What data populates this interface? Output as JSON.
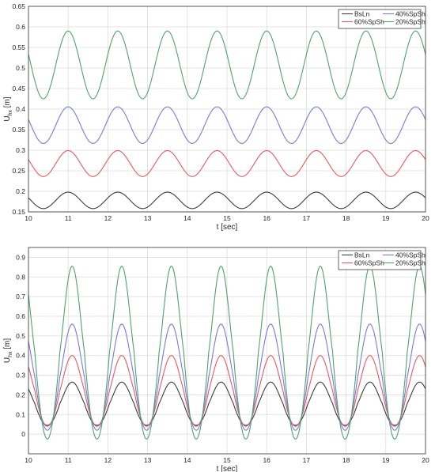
{
  "colors": {
    "BsLn": "#3c3c3c",
    "60%SpSh": "#e8595c",
    "40%SpSh": "#7b78dd",
    "20%SpSh": "#4fa46b",
    "grid": "#dcdcdc",
    "axis": "#333333"
  },
  "chart_data": [
    {
      "type": "line",
      "title": "",
      "xlabel": "t [sec]",
      "ylabel": {
        "main": "U",
        "sub": "hx",
        "unit": " [m]"
      },
      "xlim": [
        10,
        20
      ],
      "ylim": [
        0.15,
        0.65
      ],
      "xticks": [
        "10",
        "11",
        "12",
        "13",
        "14",
        "15",
        "16",
        "17",
        "18",
        "19",
        "20"
      ],
      "yticks": [
        "0.15",
        "0.2",
        "0.25",
        "0.3",
        "0.35",
        "0.4",
        "0.45",
        "0.5",
        "0.55",
        "0.6",
        "0.65"
      ],
      "grid": true,
      "legend": {
        "placement": "top-right",
        "columns": 2,
        "entries": [
          "BsLn",
          "40%SpSh",
          "60%SpSh",
          "20%SpSh"
        ]
      },
      "period": 1.25,
      "series": [
        {
          "name": "BsLn",
          "mean": 0.178,
          "amplitude": 0.02,
          "phase_at_peak": 11.0,
          "shape": 0.0
        },
        {
          "name": "60%SpSh",
          "mean": 0.2675,
          "amplitude": 0.0315,
          "phase_at_peak": 11.0,
          "shape": 0.0
        },
        {
          "name": "40%SpSh",
          "mean": 0.361,
          "amplitude": 0.0445,
          "phase_at_peak": 11.0,
          "shape": 0.0
        },
        {
          "name": "20%SpSh",
          "mean": 0.5075,
          "amplitude": 0.0825,
          "phase_at_peak": 11.0,
          "shape": 0.0
        }
      ]
    },
    {
      "type": "line",
      "title": "",
      "xlabel": "t [sec]",
      "ylabel": {
        "main": "U",
        "sub": "hx",
        "unit": " [m]"
      },
      "xlim": [
        10,
        20
      ],
      "ylim": [
        -0.1,
        0.95
      ],
      "xticks": [
        "10",
        "11",
        "12",
        "13",
        "14",
        "15",
        "16",
        "17",
        "18",
        "19",
        "20"
      ],
      "yticks": [
        "0",
        "0.1",
        "0.2",
        "0.3",
        "0.4",
        "0.5",
        "0.6",
        "0.7",
        "0.8",
        "0.9"
      ],
      "grid": true,
      "legend": {
        "placement": "top-right",
        "columns": 2,
        "entries": [
          "BsLn",
          "40%SpSh",
          "60%SpSh",
          "20%SpSh"
        ]
      },
      "period": 1.25,
      "series": [
        {
          "name": "BsLn",
          "mean": 0.155,
          "amplitude": 0.11,
          "phase_at_peak": 11.1,
          "shape": 0.35
        },
        {
          "name": "60%SpSh",
          "mean": 0.22,
          "amplitude": 0.18,
          "phase_at_peak": 11.1,
          "shape": 0.35
        },
        {
          "name": "40%SpSh",
          "mean": 0.29,
          "amplitude": 0.27,
          "phase_at_peak": 11.1,
          "shape": 0.4
        },
        {
          "name": "20%SpSh",
          "mean": 0.415,
          "amplitude": 0.44,
          "phase_at_peak": 11.1,
          "shape": 0.45
        }
      ]
    }
  ]
}
